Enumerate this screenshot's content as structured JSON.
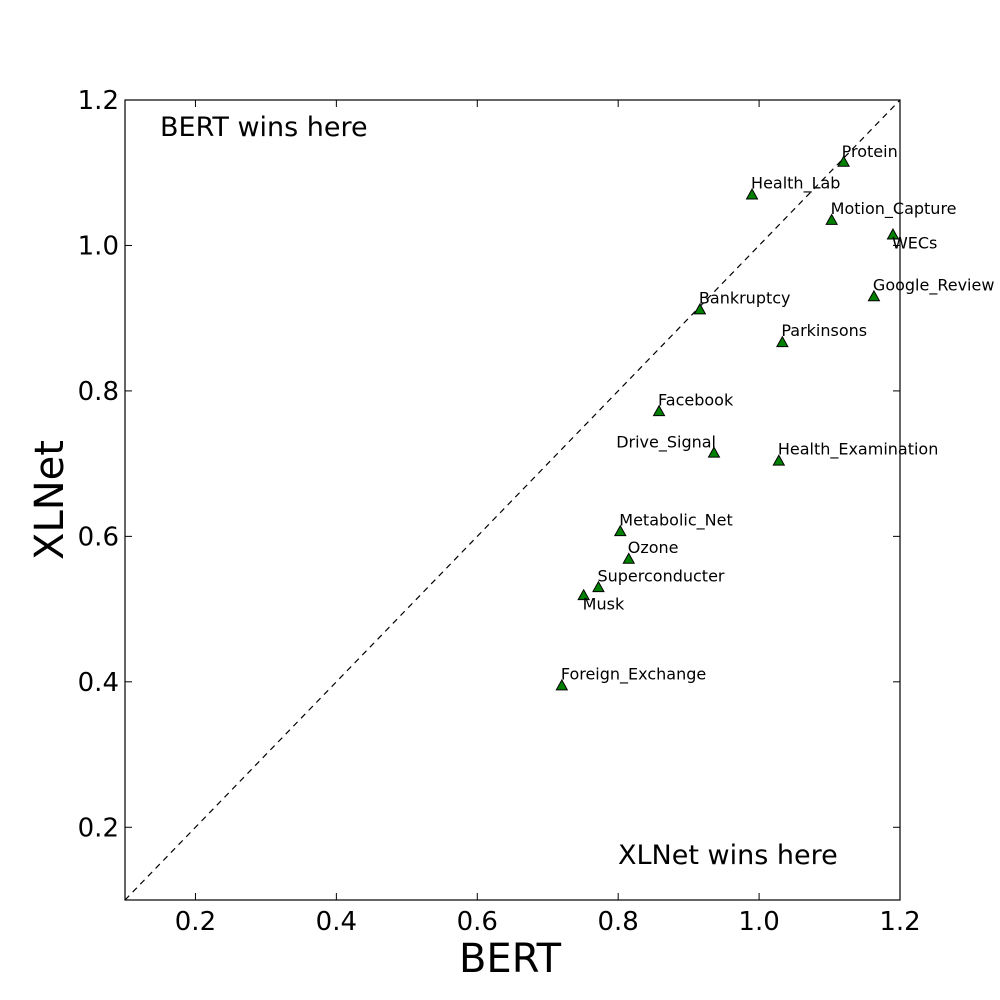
{
  "chart_data": {
    "type": "scatter",
    "title": "",
    "xlabel": "BERT",
    "ylabel": "XLNet",
    "xlim": [
      0.1,
      1.2
    ],
    "ylim": [
      0.1,
      1.2
    ],
    "x_ticks": [
      "0.2",
      "0.4",
      "0.6",
      "0.8",
      "1.0",
      "1.2"
    ],
    "y_ticks": [
      "0.2",
      "0.4",
      "0.6",
      "0.8",
      "1.0",
      "1.2"
    ],
    "reference_line": "y = x (dashed)",
    "annotations": {
      "top_left": "BERT wins here",
      "bottom_right": "XLNet wins here"
    },
    "marker": {
      "shape": "triangle",
      "fill": "#008000",
      "stroke": "#000000"
    },
    "points": [
      {
        "label": "Protein",
        "x": 1.12,
        "y": 1.115,
        "label_pos": "above-right"
      },
      {
        "label": "Health_Lab",
        "x": 0.99,
        "y": 1.07,
        "label_pos": "above-left"
      },
      {
        "label": "Motion_Capture",
        "x": 1.103,
        "y": 1.035,
        "label_pos": "above-left"
      },
      {
        "label": "WECs",
        "x": 1.19,
        "y": 1.015,
        "label_pos": "below-left"
      },
      {
        "label": "Google_Review",
        "x": 1.163,
        "y": 0.93,
        "label_pos": "above-left"
      },
      {
        "label": "Bankruptcy",
        "x": 0.916,
        "y": 0.912,
        "label_pos": "above-left"
      },
      {
        "label": "Parkinsons",
        "x": 1.033,
        "y": 0.867,
        "label_pos": "above-left"
      },
      {
        "label": "Facebook",
        "x": 0.858,
        "y": 0.772,
        "label_pos": "above-left"
      },
      {
        "label": "Drive_Signal",
        "x": 0.936,
        "y": 0.715,
        "label_pos": "above-right-aligned"
      },
      {
        "label": "Health_Examination",
        "x": 1.028,
        "y": 0.704,
        "label_pos": "above-left"
      },
      {
        "label": "Metabolic_Net",
        "x": 0.803,
        "y": 0.607,
        "label_pos": "above-left"
      },
      {
        "label": "Ozone",
        "x": 0.815,
        "y": 0.569,
        "label_pos": "above-left"
      },
      {
        "label": "Superconducter",
        "x": 0.772,
        "y": 0.53,
        "label_pos": "above-left"
      },
      {
        "label": "Musk",
        "x": 0.751,
        "y": 0.519,
        "label_pos": "below-left"
      },
      {
        "label": "Foreign_Exchange",
        "x": 0.72,
        "y": 0.395,
        "label_pos": "above-left"
      }
    ]
  }
}
